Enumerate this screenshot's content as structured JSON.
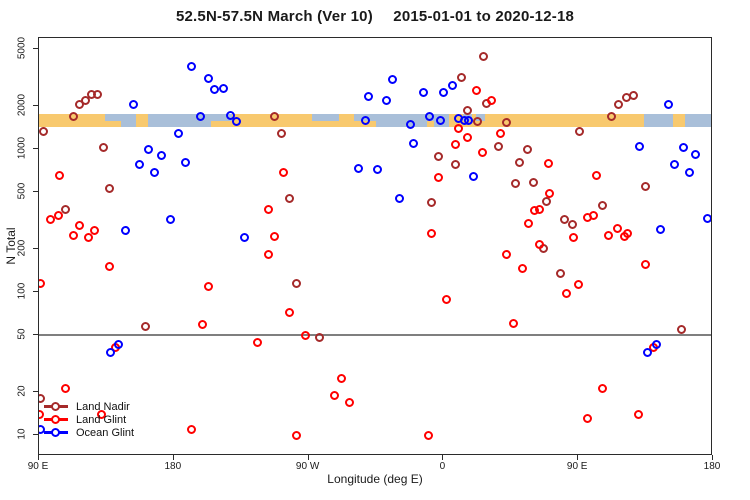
{
  "chart_data": {
    "type": "scatter",
    "title_left": "52.5N-57.5N March (Ver 10)",
    "title_right": "2015-01-01 to 2020-12-18",
    "xlabel": "Longitude (deg E)",
    "ylabel": "N Total",
    "y_axis": {
      "scale": "log",
      "tick_values": [
        5000,
        2000,
        1000,
        500,
        200,
        100,
        50,
        20,
        10
      ],
      "range": [
        7,
        6000
      ]
    },
    "x_axis": {
      "note": "axis wraps eastward from 90E through 180, 90W, 0, 90E to 180 (span 450 deg)",
      "range_deg": [
        90,
        540
      ],
      "ticks": [
        {
          "pos": 90,
          "label": "90 E"
        },
        {
          "pos": 180,
          "label": "180"
        },
        {
          "pos": 270,
          "label": "90 W"
        },
        {
          "pos": 360,
          "label": "0"
        },
        {
          "pos": 450,
          "label": "90 E"
        },
        {
          "pos": 540,
          "label": "180"
        }
      ]
    },
    "reference_line": {
      "value": 50,
      "color": "#7f7f7f"
    },
    "map_strip": {
      "ocean_color": "#a9bfd9",
      "land_color": "#f8c96e",
      "approx_n_center": 1600,
      "land_segments": [
        {
          "from": 90,
          "to": 134,
          "part": "full"
        },
        {
          "from": 134,
          "to": 145,
          "part": "bottom"
        },
        {
          "from": 155,
          "to": 163,
          "part": "full"
        },
        {
          "from": 205,
          "to": 219,
          "part": "bottom"
        },
        {
          "from": 219,
          "to": 272,
          "part": "full"
        },
        {
          "from": 272,
          "to": 290,
          "part": "bottom"
        },
        {
          "from": 290,
          "to": 300,
          "part": "full"
        },
        {
          "from": 300,
          "to": 315,
          "part": "bottom"
        },
        {
          "from": 349,
          "to": 354,
          "part": "bottom"
        },
        {
          "from": 364,
          "to": 494,
          "part": "full"
        },
        {
          "from": 513,
          "to": 521,
          "part": "full"
        }
      ],
      "ocean_top_patches": [
        {
          "from": 373,
          "to": 379
        },
        {
          "from": 382,
          "to": 388
        }
      ]
    },
    "legend_position": "bottom-left",
    "marker": "open-circle",
    "series": [
      {
        "name": "Land Nadir",
        "color": "#a52a2a",
        "points": [
          [
            125,
            2400
          ],
          [
            129,
            2400
          ],
          [
            121,
            2200
          ],
          [
            117,
            2050
          ],
          [
            113,
            1680
          ],
          [
            93,
            1330
          ],
          [
            133,
            1030
          ],
          [
            137,
            530
          ],
          [
            108,
            380
          ],
          [
            387,
            4400
          ],
          [
            372,
            3150
          ],
          [
            376,
            1870
          ],
          [
            247,
            1680
          ],
          [
            252,
            1280
          ],
          [
            357,
            890
          ],
          [
            368,
            780
          ],
          [
            257,
            450
          ],
          [
            352,
            420
          ],
          [
            389,
            2070
          ],
          [
            477,
            2050
          ],
          [
            482,
            2300
          ],
          [
            487,
            2350
          ],
          [
            472,
            1680
          ],
          [
            402,
            1520
          ],
          [
            451,
            1330
          ],
          [
            397,
            1040
          ],
          [
            416,
            1000
          ],
          [
            411,
            810
          ],
          [
            408,
            575
          ],
          [
            420,
            580
          ],
          [
            495,
            545
          ],
          [
            429,
            430
          ],
          [
            466,
            400
          ],
          [
            441,
            320
          ],
          [
            446,
            295
          ],
          [
            383,
            1550
          ],
          [
            161,
            57
          ],
          [
            262,
            114
          ],
          [
            277,
            48
          ],
          [
            427,
            200
          ],
          [
            438,
            134
          ],
          [
            519,
            55
          ],
          [
            91,
            18
          ]
        ]
      },
      {
        "name": "Land Glint",
        "color": "#ff0000",
        "points": [
          [
            104,
            650
          ],
          [
            103,
            345
          ],
          [
            98,
            320
          ],
          [
            117,
            290
          ],
          [
            127,
            270
          ],
          [
            113,
            250
          ],
          [
            123,
            240
          ],
          [
            382,
            2560
          ],
          [
            392,
            2200
          ],
          [
            370,
            1380
          ],
          [
            376,
            1200
          ],
          [
            368,
            1070
          ],
          [
            386,
            940
          ],
          [
            398,
            1290
          ],
          [
            253,
            680
          ],
          [
            357,
            630
          ],
          [
            243,
            380
          ],
          [
            247,
            245
          ],
          [
            352,
            255
          ],
          [
            430,
            790
          ],
          [
            462,
            650
          ],
          [
            431,
            485
          ],
          [
            421,
            370
          ],
          [
            424,
            380
          ],
          [
            417,
            300
          ],
          [
            456,
            330
          ],
          [
            460,
            345
          ],
          [
            470,
            250
          ],
          [
            476,
            280
          ],
          [
            481,
            245
          ],
          [
            483,
            255
          ],
          [
            447,
            240
          ],
          [
            424,
            215
          ],
          [
            137,
            150
          ],
          [
            91,
            114
          ],
          [
            203,
            110
          ],
          [
            199,
            59
          ],
          [
            141,
            41
          ],
          [
            108,
            21
          ],
          [
            132,
            14
          ],
          [
            192,
            11
          ],
          [
            90,
            14
          ],
          [
            243,
            182
          ],
          [
            362,
            88
          ],
          [
            257,
            72
          ],
          [
            268,
            50
          ],
          [
            236,
            44
          ],
          [
            292,
            25
          ],
          [
            287,
            19
          ],
          [
            297,
            17
          ],
          [
            262,
            10
          ],
          [
            350,
            10
          ],
          [
            402,
            182
          ],
          [
            413,
            145
          ],
          [
            450,
            112
          ],
          [
            442,
            97
          ],
          [
            495,
            155
          ],
          [
            407,
            60
          ],
          [
            500,
            41
          ],
          [
            466,
            21
          ],
          [
            456,
            13
          ],
          [
            490,
            14
          ]
        ]
      },
      {
        "name": "Ocean Glint",
        "color": "#0000ff",
        "points": [
          [
            192,
            3800
          ],
          [
            203,
            3100
          ],
          [
            207,
            2600
          ],
          [
            213,
            2640
          ],
          [
            153,
            2050
          ],
          [
            198,
            1680
          ],
          [
            218,
            1720
          ],
          [
            222,
            1550
          ],
          [
            183,
            1280
          ],
          [
            163,
            1000
          ],
          [
            172,
            900
          ],
          [
            157,
            780
          ],
          [
            188,
            810
          ],
          [
            167,
            680
          ],
          [
            178,
            320
          ],
          [
            148,
            270
          ],
          [
            227,
            240
          ],
          [
            326,
            3050
          ],
          [
            347,
            2500
          ],
          [
            360,
            2470
          ],
          [
            366,
            2770
          ],
          [
            310,
            2330
          ],
          [
            322,
            2180
          ],
          [
            308,
            1590
          ],
          [
            338,
            1480
          ],
          [
            351,
            1680
          ],
          [
            358,
            1590
          ],
          [
            370,
            1640
          ],
          [
            374,
            1570
          ],
          [
            377,
            1590
          ],
          [
            340,
            1100
          ],
          [
            303,
            730
          ],
          [
            316,
            715
          ],
          [
            380,
            640
          ],
          [
            331,
            450
          ],
          [
            510,
            2050
          ],
          [
            491,
            1040
          ],
          [
            520,
            1030
          ],
          [
            528,
            920
          ],
          [
            514,
            780
          ],
          [
            524,
            680
          ],
          [
            505,
            275
          ],
          [
            536,
            325
          ],
          [
            138,
            38
          ],
          [
            143,
            43
          ],
          [
            496,
            38
          ],
          [
            502,
            43
          ],
          [
            91,
            11
          ]
        ]
      }
    ]
  }
}
